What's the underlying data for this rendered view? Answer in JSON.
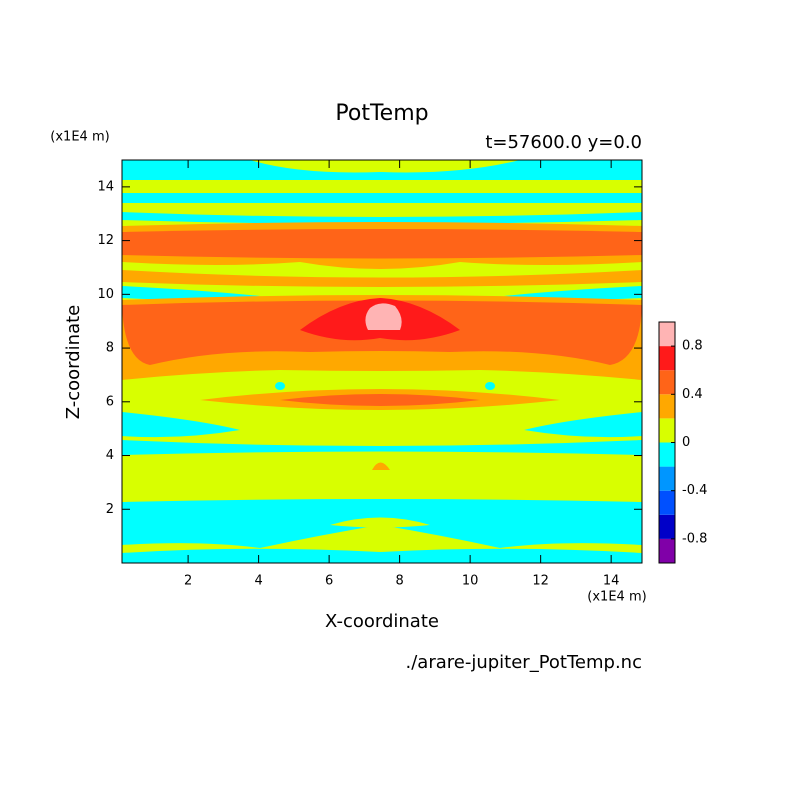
{
  "chart_data": {
    "type": "contour",
    "title": "PotTemp",
    "subtitle": "t=57600.0 y=0.0",
    "x_label": "X-coordinate",
    "y_label": "Z-coordinate",
    "x_unit": "(x1E4 m)",
    "y_unit": "(x1E4 m)",
    "source": "./arare-jupiter_PotTemp.nc",
    "xlim": [
      0.125,
      14.875
    ],
    "ylim": [
      0,
      15
    ],
    "xticks": [
      2,
      4,
      6,
      8,
      10,
      12,
      14
    ],
    "yticks": [
      2,
      4,
      6,
      8,
      10,
      12,
      14
    ],
    "colorbar": {
      "levels": [
        -1,
        -0.8,
        -0.6,
        -0.4,
        -0.2,
        0,
        0.2,
        0.4,
        0.6,
        0.8,
        1
      ],
      "colors": [
        "#8000a8",
        "#0000c8",
        "#0050ff",
        "#0096ff",
        "#00ffff",
        "#d8ff00",
        "#ffa800",
        "#ff6418",
        "#ff1a1a",
        "#ffb4b4"
      ],
      "ticks": [
        -0.8,
        -0.4,
        0,
        0.4,
        0.8
      ]
    }
  }
}
